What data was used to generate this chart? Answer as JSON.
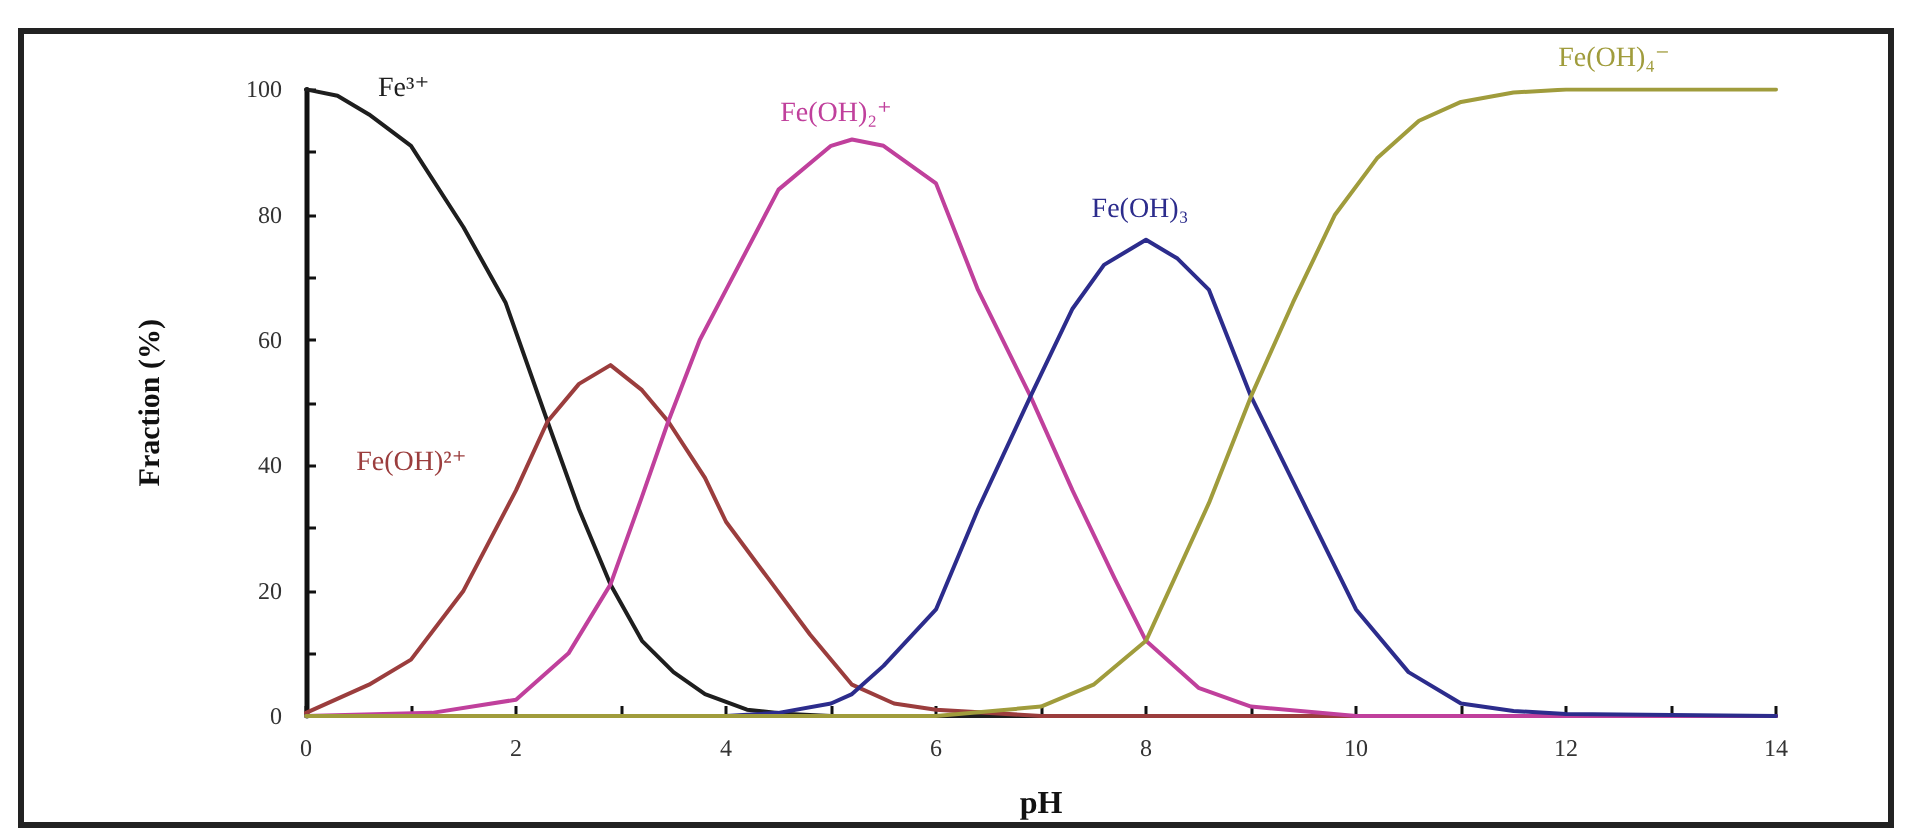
{
  "chart_data": {
    "type": "line",
    "xlabel": "pH",
    "ylabel": "Fraction (%)",
    "xlim": [
      0,
      14
    ],
    "xticks": [
      0,
      {
        "value": 1,
        "label": null
      },
      2,
      {
        "value": 3,
        "label": null
      },
      4,
      {
        "value": 5,
        "label": null
      },
      6,
      {
        "value": 7,
        "label": null
      },
      8,
      {
        "value": 9,
        "label": null
      },
      10,
      {
        "value": 11,
        "label": null
      },
      12,
      {
        "value": 13,
        "label": null
      },
      14
    ],
    "ylim": [
      0,
      100
    ],
    "yticks": [
      0,
      {
        "value": 10,
        "label": null
      },
      20,
      {
        "value": 30,
        "label": null
      },
      40,
      {
        "value": 50,
        "label": null
      },
      60,
      {
        "value": 70,
        "label": null
      },
      80,
      {
        "value": 90,
        "label": null
      },
      100
    ],
    "grid": false,
    "legend": false,
    "series": [
      {
        "name": "Fe³⁺",
        "color": "#1e1e1e",
        "x": [
          0,
          0.3,
          0.6,
          1,
          1.5,
          1.9,
          2.3,
          2.6,
          2.9,
          3.2,
          3.5,
          3.8,
          4.2,
          4.6,
          5,
          14
        ],
        "values": [
          100,
          99,
          96,
          91,
          78,
          66,
          47,
          33,
          21,
          12,
          7,
          3.5,
          1,
          0.3,
          0,
          0
        ]
      },
      {
        "name": "Fe(OH)²⁺",
        "color": "#9b3d3d",
        "x": [
          0,
          0.6,
          1,
          1.5,
          2,
          2.3,
          2.6,
          2.9,
          3.2,
          3.45,
          3.8,
          4,
          4.4,
          4.8,
          5.2,
          5.6,
          6,
          7,
          14
        ],
        "values": [
          0.5,
          5,
          9,
          20,
          36,
          47,
          53,
          56,
          52,
          47,
          38,
          31,
          22,
          13,
          5,
          2,
          1,
          0,
          0
        ]
      },
      {
        "name": "Fe(OH)₂⁺",
        "color": "#c0409c",
        "x": [
          0,
          1.2,
          2,
          2.5,
          2.9,
          3.2,
          3.45,
          3.75,
          4,
          4.5,
          5,
          5.2,
          5.5,
          6,
          6.4,
          6.9,
          7.3,
          7.7,
          8,
          8.5,
          9,
          10,
          14
        ],
        "values": [
          0,
          0.5,
          2.6,
          10,
          21,
          35,
          47,
          60,
          68,
          84,
          91,
          92,
          91,
          85,
          68,
          51,
          36,
          22,
          12,
          4.5,
          1.5,
          0,
          0
        ]
      },
      {
        "name": "Fe(OH)₃",
        "color": "#2c2c8c",
        "x": [
          0,
          4,
          4.5,
          5,
          5.2,
          5.5,
          6,
          6.4,
          6.9,
          7.3,
          7.6,
          8,
          8.3,
          8.6,
          9,
          9.5,
          10,
          10.5,
          11,
          11.5,
          12,
          14
        ],
        "values": [
          0,
          0,
          0.5,
          2,
          3.5,
          8,
          17,
          33,
          51,
          65,
          72,
          76,
          73,
          68,
          51,
          34,
          17,
          7,
          2,
          0.8,
          0.3,
          0
        ]
      },
      {
        "name": "Fe(OH)₄⁻",
        "color": "#a09c3c",
        "x": [
          0,
          6,
          7,
          7.5,
          8,
          8.6,
          9,
          9.4,
          9.8,
          10.2,
          10.6,
          11,
          11.5,
          12,
          14
        ],
        "values": [
          0,
          0,
          1.5,
          5,
          12,
          34,
          51,
          66,
          80,
          89,
          95,
          98,
          99.5,
          100,
          100
        ]
      }
    ]
  }
}
